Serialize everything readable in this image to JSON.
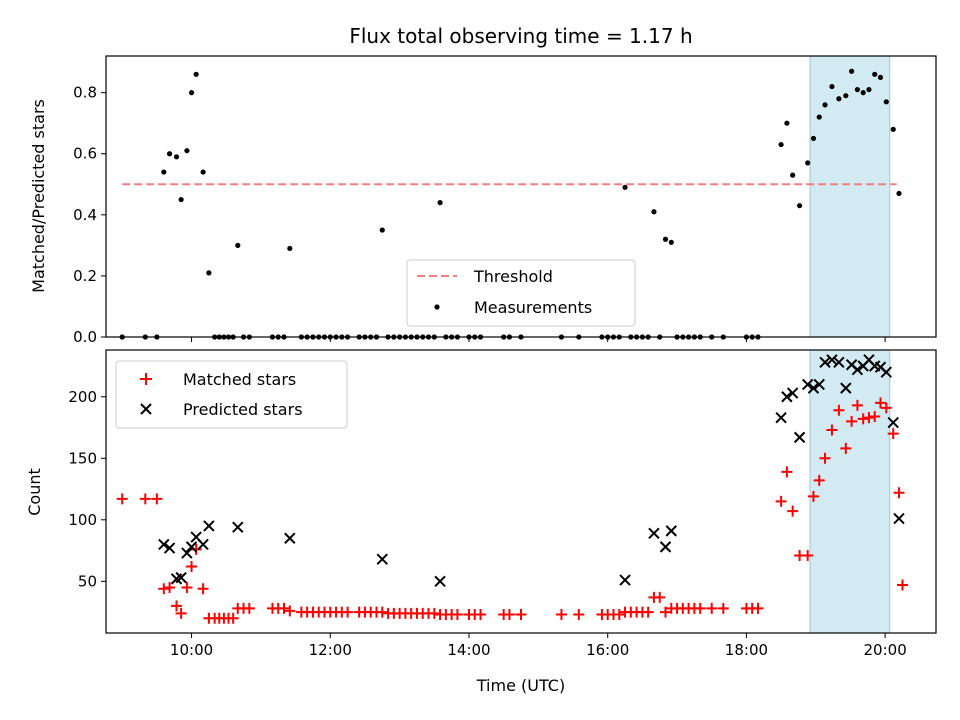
{
  "chart_data": [
    {
      "type": "scatter",
      "title": "Flux total observing time = 1.17 h",
      "xlabel": "",
      "ylabel": "Matched/Predicted stars",
      "xlim": [
        "08:46",
        "20:44"
      ],
      "ylim": [
        0,
        0.92
      ],
      "yticks": [
        0.0,
        0.2,
        0.4,
        0.6,
        0.8
      ],
      "ytick_labels": [
        "0.0",
        "0.2",
        "0.4",
        "0.6",
        "0.8"
      ],
      "shaded_span": {
        "x0": "18:55",
        "x1": "20:04",
        "color": "#add8e6"
      },
      "threshold": {
        "name": "Threshold",
        "x0": "09:00",
        "x1": "20:10",
        "y": 0.5,
        "color": "#f08080"
      },
      "legend": {
        "placement": "lower center",
        "entries": [
          "Threshold",
          "Measurements"
        ]
      },
      "series": [
        {
          "name": "Measurements",
          "color": "#000000",
          "marker": "dot",
          "points": [
            [
              "09:00",
              0.0
            ],
            [
              "09:20",
              0.0
            ],
            [
              "09:30",
              0.0
            ],
            [
              "09:36",
              0.54
            ],
            [
              "09:41",
              0.6
            ],
            [
              "09:47",
              0.59
            ],
            [
              "09:51",
              0.45
            ],
            [
              "09:56",
              0.61
            ],
            [
              "10:00",
              0.8
            ],
            [
              "10:04",
              0.86
            ],
            [
              "10:10",
              0.54
            ],
            [
              "10:15",
              0.21
            ],
            [
              "10:20",
              0.0
            ],
            [
              "10:24",
              0.0
            ],
            [
              "10:28",
              0.0
            ],
            [
              "10:32",
              0.0
            ],
            [
              "10:36",
              0.0
            ],
            [
              "10:40",
              0.3
            ],
            [
              "10:45",
              0.0
            ],
            [
              "10:50",
              0.0
            ],
            [
              "11:10",
              0.0
            ],
            [
              "11:15",
              0.0
            ],
            [
              "11:20",
              0.0
            ],
            [
              "11:25",
              0.29
            ],
            [
              "11:35",
              0.0
            ],
            [
              "11:40",
              0.0
            ],
            [
              "11:45",
              0.0
            ],
            [
              "11:50",
              0.0
            ],
            [
              "11:55",
              0.0
            ],
            [
              "12:00",
              0.0
            ],
            [
              "12:05",
              0.0
            ],
            [
              "12:10",
              0.0
            ],
            [
              "12:15",
              0.0
            ],
            [
              "12:25",
              0.0
            ],
            [
              "12:30",
              0.0
            ],
            [
              "12:35",
              0.0
            ],
            [
              "12:40",
              0.0
            ],
            [
              "12:45",
              0.35
            ],
            [
              "12:50",
              0.0
            ],
            [
              "12:55",
              0.0
            ],
            [
              "13:00",
              0.0
            ],
            [
              "13:05",
              0.0
            ],
            [
              "13:10",
              0.0
            ],
            [
              "13:15",
              0.0
            ],
            [
              "13:20",
              0.0
            ],
            [
              "13:25",
              0.0
            ],
            [
              "13:30",
              0.0
            ],
            [
              "13:35",
              0.44
            ],
            [
              "13:40",
              0.0
            ],
            [
              "13:45",
              0.0
            ],
            [
              "13:50",
              0.0
            ],
            [
              "14:00",
              0.0
            ],
            [
              "14:05",
              0.0
            ],
            [
              "14:10",
              0.0
            ],
            [
              "14:30",
              0.0
            ],
            [
              "14:35",
              0.0
            ],
            [
              "14:45",
              0.0
            ],
            [
              "15:20",
              0.0
            ],
            [
              "15:35",
              0.0
            ],
            [
              "15:55",
              0.0
            ],
            [
              "16:00",
              0.0
            ],
            [
              "16:05",
              0.0
            ],
            [
              "16:10",
              0.0
            ],
            [
              "16:15",
              0.49
            ],
            [
              "16:20",
              0.0
            ],
            [
              "16:25",
              0.0
            ],
            [
              "16:30",
              0.0
            ],
            [
              "16:35",
              0.0
            ],
            [
              "16:40",
              0.41
            ],
            [
              "16:45",
              0.0
            ],
            [
              "16:50",
              0.32
            ],
            [
              "16:55",
              0.31
            ],
            [
              "17:00",
              0.0
            ],
            [
              "17:05",
              0.0
            ],
            [
              "17:10",
              0.0
            ],
            [
              "17:15",
              0.0
            ],
            [
              "17:20",
              0.0
            ],
            [
              "17:30",
              0.0
            ],
            [
              "17:40",
              0.0
            ],
            [
              "18:00",
              0.0
            ],
            [
              "18:05",
              0.0
            ],
            [
              "18:10",
              0.0
            ],
            [
              "18:30",
              0.63
            ],
            [
              "18:35",
              0.7
            ],
            [
              "18:40",
              0.53
            ],
            [
              "18:46",
              0.43
            ],
            [
              "18:53",
              0.57
            ],
            [
              "18:58",
              0.65
            ],
            [
              "19:03",
              0.72
            ],
            [
              "19:08",
              0.76
            ],
            [
              "19:14",
              0.82
            ],
            [
              "19:20",
              0.78
            ],
            [
              "19:26",
              0.79
            ],
            [
              "19:31",
              0.87
            ],
            [
              "19:36",
              0.81
            ],
            [
              "19:41",
              0.8
            ],
            [
              "19:46",
              0.81
            ],
            [
              "19:51",
              0.86
            ],
            [
              "19:56",
              0.85
            ],
            [
              "20:01",
              0.77
            ],
            [
              "20:07",
              0.68
            ],
            [
              "20:12",
              0.47
            ]
          ]
        }
      ]
    },
    {
      "type": "scatter",
      "title": "",
      "xlabel": "Time (UTC)",
      "ylabel": "Count",
      "xlim": [
        "08:46",
        "20:44"
      ],
      "ylim": [
        8,
        238
      ],
      "yticks": [
        50,
        100,
        150,
        200
      ],
      "ytick_labels": [
        "50",
        "100",
        "150",
        "200"
      ],
      "xticks": [
        "10:00",
        "12:00",
        "14:00",
        "16:00",
        "18:00",
        "20:00"
      ],
      "xtick_labels": [
        "10:00",
        "12:00",
        "14:00",
        "16:00",
        "18:00",
        "20:00"
      ],
      "shaded_span": {
        "x0": "18:55",
        "x1": "20:04",
        "color": "#add8e6"
      },
      "legend": {
        "placement": "upper left",
        "entries": [
          "Matched stars",
          "Predicted stars"
        ]
      },
      "series": [
        {
          "name": "Matched stars",
          "color": "#ff0000",
          "marker": "plus",
          "points": [
            [
              "09:00",
              117
            ],
            [
              "09:20",
              117
            ],
            [
              "09:30",
              117
            ],
            [
              "09:36",
              44
            ],
            [
              "09:41",
              45
            ],
            [
              "09:47",
              30
            ],
            [
              "09:51",
              24
            ],
            [
              "09:56",
              45
            ],
            [
              "10:00",
              62
            ],
            [
              "10:04",
              76
            ],
            [
              "10:10",
              44
            ],
            [
              "10:15",
              20
            ],
            [
              "10:20",
              20
            ],
            [
              "10:24",
              20
            ],
            [
              "10:28",
              20
            ],
            [
              "10:32",
              20
            ],
            [
              "10:36",
              20
            ],
            [
              "10:40",
              28
            ],
            [
              "10:45",
              28
            ],
            [
              "10:50",
              28
            ],
            [
              "11:10",
              28
            ],
            [
              "11:15",
              28
            ],
            [
              "11:20",
              28
            ],
            [
              "11:25",
              26
            ],
            [
              "11:35",
              25
            ],
            [
              "11:40",
              25
            ],
            [
              "11:45",
              25
            ],
            [
              "11:50",
              25
            ],
            [
              "11:55",
              25
            ],
            [
              "12:00",
              25
            ],
            [
              "12:05",
              25
            ],
            [
              "12:10",
              25
            ],
            [
              "12:15",
              25
            ],
            [
              "12:25",
              25
            ],
            [
              "12:30",
              25
            ],
            [
              "12:35",
              25
            ],
            [
              "12:40",
              25
            ],
            [
              "12:45",
              25
            ],
            [
              "12:50",
              24
            ],
            [
              "12:55",
              24
            ],
            [
              "13:00",
              24
            ],
            [
              "13:05",
              24
            ],
            [
              "13:10",
              24
            ],
            [
              "13:15",
              24
            ],
            [
              "13:20",
              24
            ],
            [
              "13:25",
              24
            ],
            [
              "13:30",
              24
            ],
            [
              "13:35",
              23
            ],
            [
              "13:40",
              23
            ],
            [
              "13:45",
              23
            ],
            [
              "13:50",
              23
            ],
            [
              "14:00",
              23
            ],
            [
              "14:05",
              23
            ],
            [
              "14:10",
              23
            ],
            [
              "14:30",
              23
            ],
            [
              "14:35",
              23
            ],
            [
              "14:45",
              23
            ],
            [
              "15:20",
              23
            ],
            [
              "15:35",
              23
            ],
            [
              "15:55",
              23
            ],
            [
              "16:00",
              23
            ],
            [
              "16:05",
              23
            ],
            [
              "16:10",
              23
            ],
            [
              "16:15",
              25
            ],
            [
              "16:20",
              25
            ],
            [
              "16:25",
              25
            ],
            [
              "16:30",
              25
            ],
            [
              "16:35",
              25
            ],
            [
              "16:40",
              37
            ],
            [
              "16:45",
              37
            ],
            [
              "16:50",
              25
            ],
            [
              "16:55",
              28
            ],
            [
              "17:00",
              28
            ],
            [
              "17:05",
              28
            ],
            [
              "17:10",
              28
            ],
            [
              "17:15",
              28
            ],
            [
              "17:20",
              28
            ],
            [
              "17:30",
              28
            ],
            [
              "17:40",
              28
            ],
            [
              "18:00",
              28
            ],
            [
              "18:05",
              28
            ],
            [
              "18:10",
              28
            ],
            [
              "18:30",
              115
            ],
            [
              "18:35",
              139
            ],
            [
              "18:40",
              107
            ],
            [
              "18:46",
              71
            ],
            [
              "18:53",
              71
            ],
            [
              "18:58",
              119
            ],
            [
              "19:03",
              132
            ],
            [
              "19:08",
              150
            ],
            [
              "19:14",
              173
            ],
            [
              "19:20",
              189
            ],
            [
              "19:26",
              158
            ],
            [
              "19:31",
              180
            ],
            [
              "19:36",
              193
            ],
            [
              "19:41",
              182
            ],
            [
              "19:46",
              183
            ],
            [
              "19:51",
              184
            ],
            [
              "19:56",
              195
            ],
            [
              "20:01",
              191
            ],
            [
              "20:07",
              170
            ],
            [
              "20:12",
              122
            ],
            [
              "20:15",
              47
            ]
          ]
        },
        {
          "name": "Predicted stars",
          "color": "#000000",
          "marker": "x",
          "points": [
            [
              "09:36",
              80
            ],
            [
              "09:41",
              77
            ],
            [
              "09:47",
              52
            ],
            [
              "09:51",
              53
            ],
            [
              "09:56",
              73
            ],
            [
              "10:00",
              78
            ],
            [
              "10:04",
              86
            ],
            [
              "10:10",
              80
            ],
            [
              "10:15",
              95
            ],
            [
              "10:40",
              94
            ],
            [
              "11:25",
              85
            ],
            [
              "12:45",
              68
            ],
            [
              "13:35",
              50
            ],
            [
              "16:15",
              51
            ],
            [
              "16:40",
              89
            ],
            [
              "16:50",
              78
            ],
            [
              "16:55",
              91
            ],
            [
              "18:30",
              183
            ],
            [
              "18:35",
              200
            ],
            [
              "18:40",
              203
            ],
            [
              "18:46",
              167
            ],
            [
              "18:53",
              210
            ],
            [
              "18:58",
              207
            ],
            [
              "19:03",
              210
            ],
            [
              "19:08",
              228
            ],
            [
              "19:14",
              230
            ],
            [
              "19:20",
              228
            ],
            [
              "19:26",
              207
            ],
            [
              "19:31",
              226
            ],
            [
              "19:36",
              222
            ],
            [
              "19:41",
              225
            ],
            [
              "19:46",
              230
            ],
            [
              "19:51",
              225
            ],
            [
              "19:56",
              224
            ],
            [
              "20:01",
              220
            ],
            [
              "20:07",
              179
            ],
            [
              "20:12",
              101
            ]
          ]
        }
      ]
    }
  ]
}
